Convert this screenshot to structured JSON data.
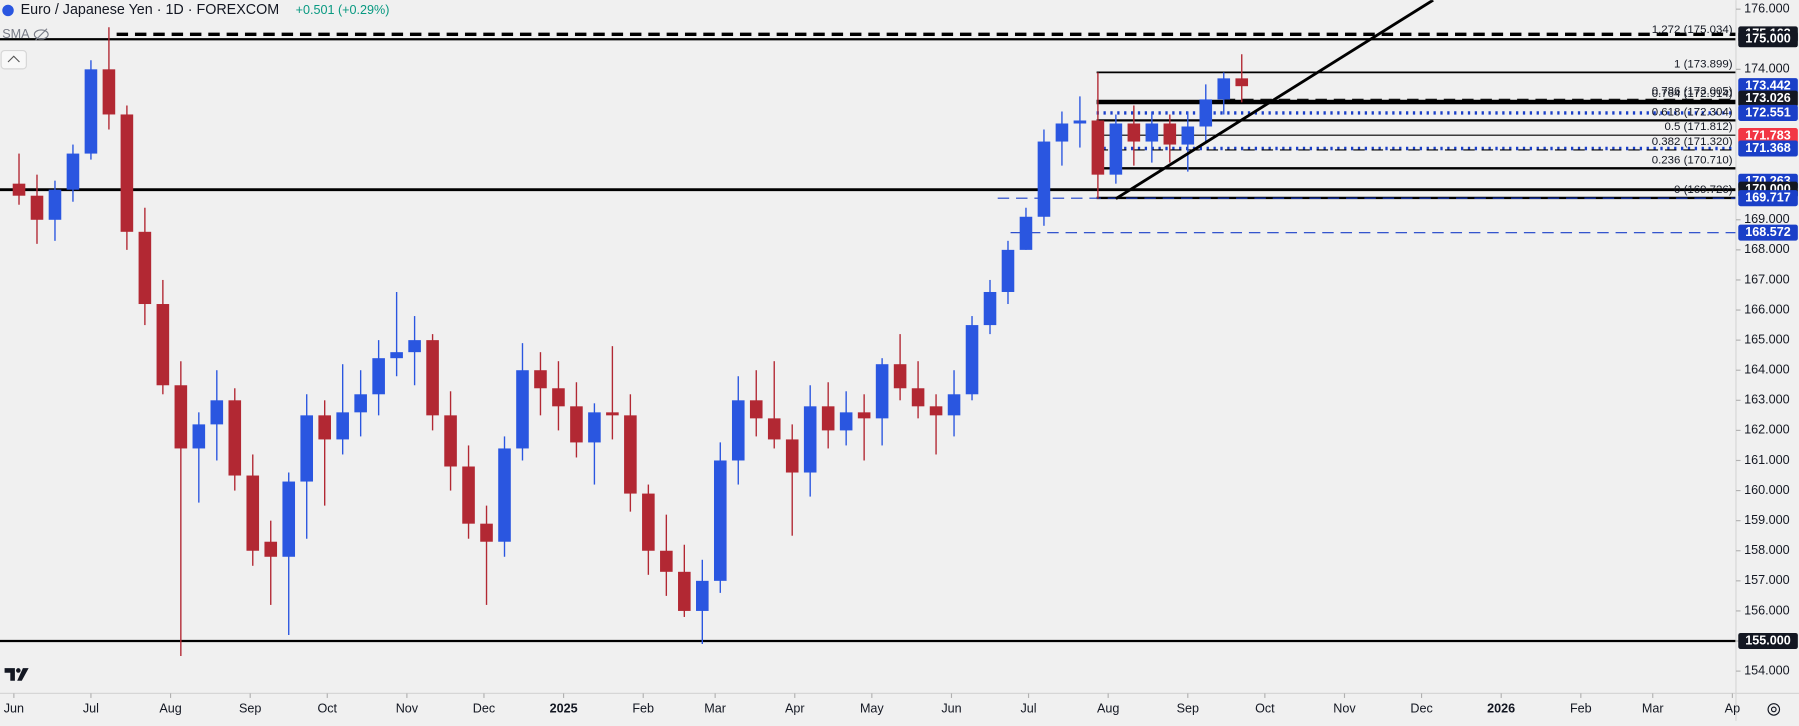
{
  "chart_data": {
    "type": "candlestick",
    "title": "Euro / Japanese Yen · 1D · FOREXCOM",
    "change": "+0.501 (+0.29%)",
    "indicator": "SMA",
    "up_color": "#2a56e0",
    "down_color": "#b22833",
    "candles": {
      "x": [
        2,
        9,
        16,
        23,
        30,
        37,
        44,
        51,
        58,
        65,
        72,
        79,
        86,
        93,
        100,
        107,
        114,
        121,
        128,
        135,
        142,
        149,
        156,
        163,
        170,
        177,
        184,
        191,
        198,
        205,
        212,
        219,
        226,
        233,
        240,
        247,
        254,
        261,
        268,
        275,
        282,
        289,
        296,
        303,
        310,
        317,
        324,
        331,
        338,
        345,
        352,
        359,
        366,
        373,
        380,
        387,
        394,
        401,
        408,
        415,
        422,
        429,
        436,
        443,
        450,
        457,
        464,
        471,
        478
      ],
      "open": [
        170.2,
        169.8,
        169.0,
        170.0,
        171.2,
        174.0,
        172.5,
        168.6,
        166.2,
        163.5,
        161.4,
        162.2,
        163.0,
        160.5,
        158.3,
        157.8,
        160.3,
        162.5,
        161.7,
        162.6,
        163.2,
        164.4,
        164.6,
        165.0,
        162.5,
        160.8,
        158.9,
        158.3,
        161.4,
        164.0,
        163.4,
        162.8,
        161.6,
        162.6,
        162.5,
        159.9,
        158.0,
        157.3,
        156.0,
        157.0,
        161.0,
        163.0,
        162.4,
        161.7,
        160.6,
        162.8,
        162.0,
        162.6,
        162.4,
        164.2,
        163.4,
        162.8,
        162.5,
        163.2,
        165.5,
        166.6,
        168.0,
        169.1,
        171.6,
        172.2,
        172.3,
        170.5,
        172.2,
        171.6,
        172.2,
        171.5,
        172.1,
        173.0,
        173.7
      ],
      "high": [
        171.2,
        170.5,
        170.3,
        171.5,
        174.3,
        175.4,
        172.8,
        169.4,
        167.0,
        164.3,
        162.6,
        164.0,
        163.4,
        161.2,
        159.0,
        160.6,
        163.2,
        163.0,
        164.2,
        164.0,
        165.0,
        166.6,
        165.8,
        165.2,
        163.3,
        161.5,
        159.5,
        161.8,
        164.9,
        164.6,
        164.3,
        163.6,
        162.9,
        164.8,
        163.2,
        160.2,
        159.2,
        158.2,
        157.7,
        161.6,
        163.8,
        164.0,
        164.3,
        162.2,
        163.5,
        163.6,
        163.3,
        163.2,
        164.4,
        165.2,
        164.3,
        163.2,
        164.0,
        165.8,
        167.0,
        168.3,
        169.4,
        172.0,
        172.6,
        173.1,
        173.9,
        172.5,
        172.8,
        172.6,
        172.5,
        172.6,
        173.5,
        173.9,
        174.5
      ],
      "low": [
        169.5,
        168.2,
        168.3,
        169.6,
        171.0,
        172.0,
        168.0,
        165.5,
        163.2,
        154.5,
        159.6,
        161.0,
        160.0,
        157.5,
        156.2,
        155.2,
        158.4,
        159.5,
        161.2,
        161.8,
        162.5,
        163.8,
        163.5,
        162.0,
        160.0,
        158.4,
        156.2,
        157.8,
        161.0,
        162.5,
        162.0,
        161.1,
        160.2,
        161.7,
        159.3,
        157.2,
        156.5,
        155.8,
        154.9,
        156.6,
        160.2,
        161.8,
        161.4,
        158.5,
        159.8,
        161.4,
        161.5,
        161.0,
        161.5,
        163.0,
        162.4,
        161.2,
        161.8,
        163.0,
        165.2,
        166.2,
        168.0,
        168.8,
        170.8,
        171.4,
        169.7,
        170.2,
        170.8,
        170.9,
        170.9,
        170.6,
        171.6,
        172.5,
        172.9
      ],
      "close": [
        169.8,
        169.0,
        170.0,
        171.2,
        174.0,
        172.5,
        168.6,
        166.2,
        163.5,
        161.4,
        162.2,
        163.0,
        160.5,
        158.0,
        157.8,
        160.3,
        162.5,
        161.7,
        162.6,
        163.2,
        164.4,
        164.6,
        165.0,
        162.5,
        160.8,
        158.9,
        158.3,
        161.4,
        164.0,
        163.4,
        162.8,
        161.6,
        162.6,
        162.5,
        159.9,
        158.0,
        157.3,
        156.0,
        157.0,
        161.0,
        163.0,
        162.4,
        161.7,
        160.6,
        162.8,
        162.0,
        162.6,
        162.4,
        164.2,
        163.4,
        162.8,
        162.5,
        163.2,
        165.5,
        166.6,
        168.0,
        169.1,
        171.6,
        172.2,
        172.3,
        170.5,
        172.2,
        171.6,
        172.2,
        171.5,
        172.1,
        173.0,
        173.7,
        173.44
      ]
    },
    "xlim": [
      -5.4,
      670.4
    ],
    "ylim": [
      153.26,
      176.3
    ],
    "xticks": [
      {
        "value": 0,
        "label": "Jun"
      },
      {
        "value": 30,
        "label": "Jul"
      },
      {
        "value": 61,
        "label": "Aug"
      },
      {
        "value": 92,
        "label": "Sep"
      },
      {
        "value": 122,
        "label": "Oct"
      },
      {
        "value": 153,
        "label": "Nov"
      },
      {
        "value": 183,
        "label": "Dec"
      },
      {
        "value": 214,
        "label": "2025"
      },
      {
        "value": 245,
        "label": "Feb"
      },
      {
        "value": 273,
        "label": "Mar"
      },
      {
        "value": 304,
        "label": "Apr"
      },
      {
        "value": 334,
        "label": "May"
      },
      {
        "value": 365,
        "label": "Jun"
      },
      {
        "value": 395,
        "label": "Jul"
      },
      {
        "value": 426,
        "label": "Aug"
      },
      {
        "value": 457,
        "label": "Sep"
      },
      {
        "value": 487,
        "label": "Oct"
      },
      {
        "value": 518,
        "label": "Nov"
      },
      {
        "value": 548,
        "label": "Dec"
      },
      {
        "value": 579,
        "label": "2026"
      },
      {
        "value": 610,
        "label": "Feb"
      },
      {
        "value": 638,
        "label": "Mar"
      },
      {
        "value": 669,
        "label": "Ap"
      }
    ],
    "yticks": [
      {
        "value": 176,
        "label": "176.000"
      },
      {
        "value": 174,
        "label": "174.000"
      },
      {
        "value": 169,
        "label": "169.000"
      },
      {
        "value": 168,
        "label": "168.000"
      },
      {
        "value": 167,
        "label": "167.000"
      },
      {
        "value": 166,
        "label": "166.000"
      },
      {
        "value": 165,
        "label": "165.000"
      },
      {
        "value": 164,
        "label": "164.000"
      },
      {
        "value": 163,
        "label": "163.000"
      },
      {
        "value": 162,
        "label": "162.000"
      },
      {
        "value": 161,
        "label": "161.000"
      },
      {
        "value": 160,
        "label": "160.000"
      },
      {
        "value": 159,
        "label": "159.000"
      },
      {
        "value": 158,
        "label": "158.000"
      },
      {
        "value": 157,
        "label": "157.000"
      },
      {
        "value": 156,
        "label": "156.000"
      },
      {
        "value": 155,
        "label": "155.000"
      },
      {
        "value": 154,
        "label": "154.000"
      }
    ],
    "levels": [
      {
        "value": 175.163,
        "from": 40,
        "style": "dashed",
        "color": "#000000",
        "width": 3
      },
      {
        "value": 175,
        "from": -5.4,
        "style": "solid",
        "color": "#000000",
        "width": 2
      },
      {
        "value": 173.899,
        "from": 421.5,
        "style": "solid",
        "color": "#000000",
        "width": 1.5
      },
      {
        "value": 173.005,
        "from": 471,
        "style": "dashed",
        "color": "#000000",
        "width": 1
      },
      {
        "value": 172.914,
        "from": 421.5,
        "style": "solid",
        "color": "#000000",
        "width": 4
      },
      {
        "value": 172.551,
        "from": 421.5,
        "style": "dotted",
        "color": "#1a3fc8",
        "width": 3
      },
      {
        "value": 172.304,
        "from": 421.5,
        "style": "solid",
        "color": "#000000",
        "width": 2
      },
      {
        "value": 171.812,
        "from": 421.5,
        "style": "solid",
        "color": "#000000",
        "width": 1
      },
      {
        "value": 171.368,
        "from": 421.5,
        "style": "dotted",
        "color": "#1a3fc8",
        "width": 3
      },
      {
        "value": 171.32,
        "from": 421.5,
        "style": "dashed",
        "color": "#000000",
        "width": 1
      },
      {
        "value": 170.71,
        "from": 421.5,
        "style": "solid",
        "color": "#000000",
        "width": 2
      },
      {
        "value": 170,
        "from": -5.4,
        "style": "solid",
        "color": "#000000",
        "width": 2.5
      },
      {
        "value": 169.726,
        "from": 421.5,
        "style": "solid",
        "color": "#000000",
        "width": 2
      },
      {
        "value": 169.717,
        "from": 383,
        "style": "dashed",
        "color": "#1a3fc8",
        "width": 1
      },
      {
        "value": 168.572,
        "from": 388,
        "style": "dashed",
        "color": "#1a3fc8",
        "width": 1
      },
      {
        "value": 155,
        "from": -5.4,
        "style": "solid",
        "color": "#000000",
        "width": 2
      }
    ],
    "fib_labels": [
      {
        "value": 175.034,
        "label": "1.272 (175.034)"
      },
      {
        "value": 173.899,
        "label": "1 (173.899)"
      },
      {
        "value": 173.005,
        "label": "0.786 (173.005)"
      },
      {
        "value": 172.914,
        "label": "0.764 (172.914)"
      },
      {
        "value": 172.304,
        "label": "0.618 (172.304)"
      },
      {
        "value": 171.812,
        "label": "0.5 (171.812)"
      },
      {
        "value": 171.32,
        "label": "0.382 (171.320)"
      },
      {
        "value": 170.71,
        "label": "0.236 (170.710)"
      },
      {
        "value": 169.726,
        "label": "0 (169.726)"
      }
    ],
    "price_labels": [
      {
        "value": 175.163,
        "label": "175.163",
        "color": "#131722"
      },
      {
        "value": 175,
        "label": "175.000",
        "color": "#131722"
      },
      {
        "value": 173.442,
        "label": "173.442",
        "color": "#1a3fc8"
      },
      {
        "value": 173.026,
        "label": "173.026",
        "color": "#131722"
      },
      {
        "value": 172.551,
        "label": "172.551",
        "color": "#1a3fc8"
      },
      {
        "value": 171.783,
        "label": "171.783",
        "color": "#f23645"
      },
      {
        "value": 171.368,
        "label": "171.368",
        "color": "#1a3fc8"
      },
      {
        "value": 170.263,
        "label": "170.263",
        "color": "#1a3fc8"
      },
      {
        "value": 170,
        "label": "170.000",
        "color": "#131722"
      },
      {
        "value": 169.717,
        "label": "169.717",
        "color": "#1a3fc8"
      },
      {
        "value": 168.572,
        "label": "168.572",
        "color": "#1a3fc8"
      },
      {
        "value": 155,
        "label": "155.000",
        "color": "#131722"
      }
    ],
    "trendline": {
      "x": [
        429,
        552.5
      ],
      "y": [
        169.7,
        176.3
      ]
    }
  }
}
